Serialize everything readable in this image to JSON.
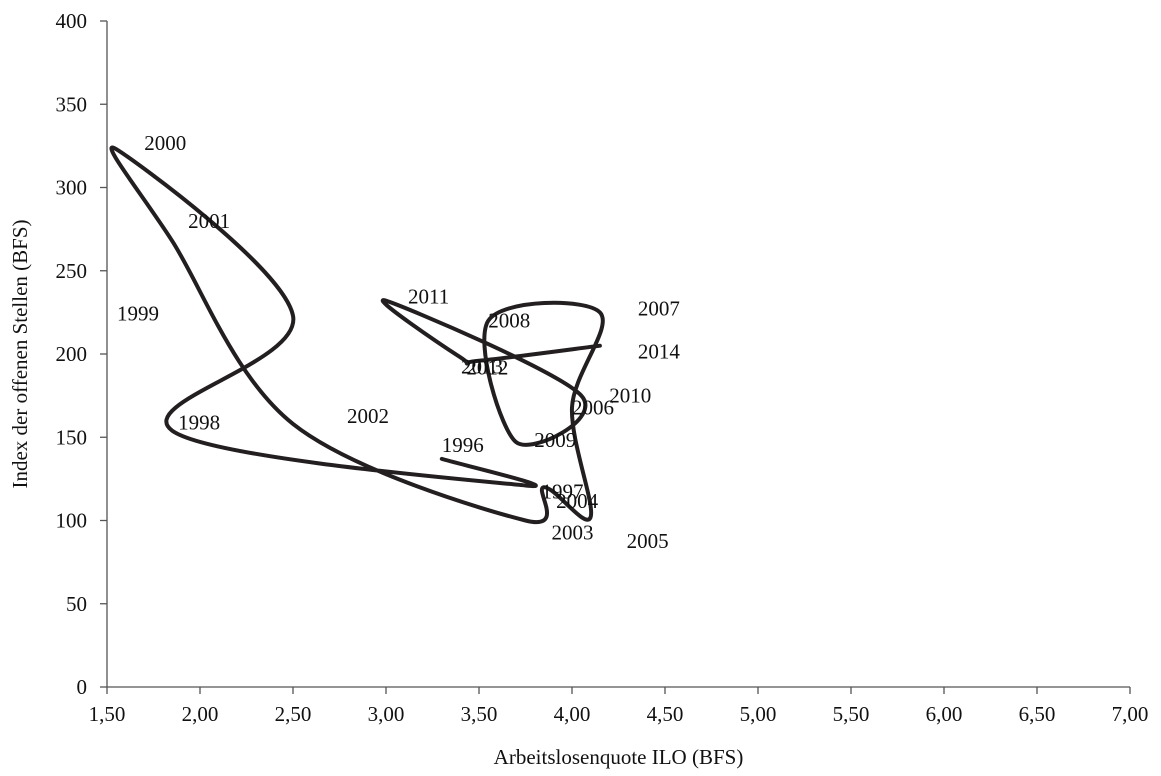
{
  "chart_data": {
    "type": "line",
    "title": "",
    "xlabel": "Arbeitslosenquote ILO (BFS)",
    "ylabel": "Index der offenen Stellen (BFS)",
    "xlim": [
      1.5,
      7.0
    ],
    "ylim": [
      0,
      400
    ],
    "x_ticks": [
      "1,50",
      "2,00",
      "2,50",
      "3,00",
      "3,50",
      "4,00",
      "4,50",
      "5,00",
      "5,50",
      "6,00",
      "6,50",
      "7,00"
    ],
    "y_ticks": [
      "0",
      "50",
      "100",
      "150",
      "200",
      "250",
      "300",
      "350",
      "400"
    ],
    "grid": false,
    "legend": "none",
    "line_color": "#231f20",
    "series": [
      {
        "points": [
          {
            "label": "1996",
            "x": 3.3,
            "y": 137
          },
          {
            "label": "1997",
            "x": 3.75,
            "y": 121
          },
          {
            "label": "1998",
            "x": 1.85,
            "y": 154
          },
          {
            "label": "1999",
            "x": 2.5,
            "y": 223
          },
          {
            "label": "2000",
            "x": 1.55,
            "y": 323
          },
          {
            "label": "2001",
            "x": 1.85,
            "y": 268
          },
          {
            "label": "2002",
            "x": 2.5,
            "y": 158
          },
          {
            "label": "2003",
            "x": 3.75,
            "y": 100
          },
          {
            "label": "2004",
            "x": 3.85,
            "y": 120
          },
          {
            "label": "2005",
            "x": 4.1,
            "y": 102
          },
          {
            "label": "2006",
            "x": 4.0,
            "y": 168
          },
          {
            "label": "2007",
            "x": 4.15,
            "y": 225
          },
          {
            "label": "2008",
            "x": 3.55,
            "y": 220
          },
          {
            "label": "2009",
            "x": 3.7,
            "y": 147
          },
          {
            "label": "2010",
            "x": 4.05,
            "y": 175
          },
          {
            "label": "2011",
            "x": 3.0,
            "y": 232
          },
          {
            "label": "2012",
            "x": 3.4,
            "y": 198
          },
          {
            "label": "2013",
            "x": 3.5,
            "y": 196
          },
          {
            "label": "2014",
            "x": 4.15,
            "y": 205
          }
        ]
      }
    ]
  }
}
